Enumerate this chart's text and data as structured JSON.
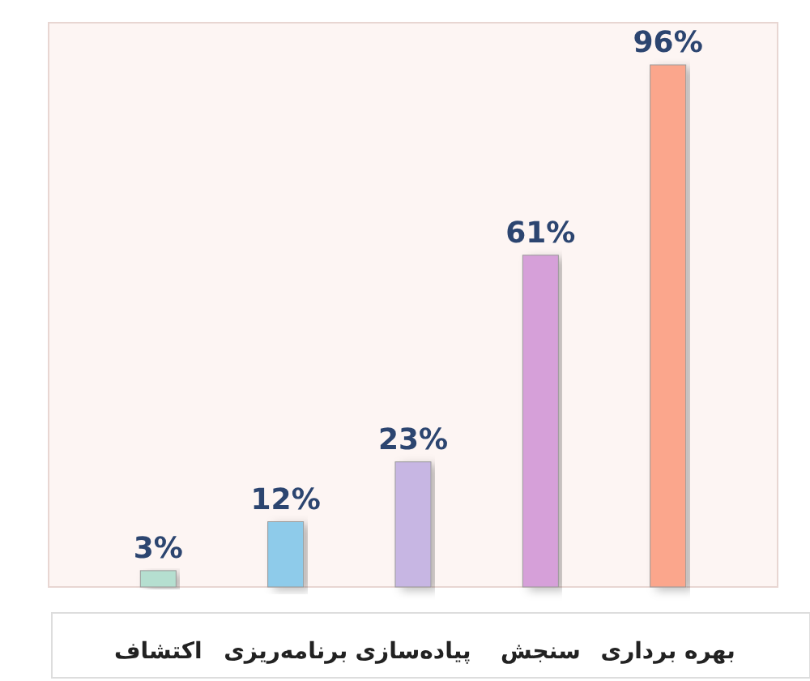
{
  "chart_data": {
    "type": "bar",
    "categories": [
      "اکتشاف",
      "برنامه‌ریزی",
      "پیاده‌سازی",
      "سنجش",
      "بهره برداری"
    ],
    "values": [
      3,
      12,
      23,
      61,
      96
    ],
    "colors": [
      "#b5dfd0",
      "#8ecbea",
      "#c7b6e3",
      "#d6a0d9",
      "#fba68c"
    ],
    "value_labels": [
      "3%",
      "12%",
      "23%",
      "61%",
      "96%"
    ]
  }
}
